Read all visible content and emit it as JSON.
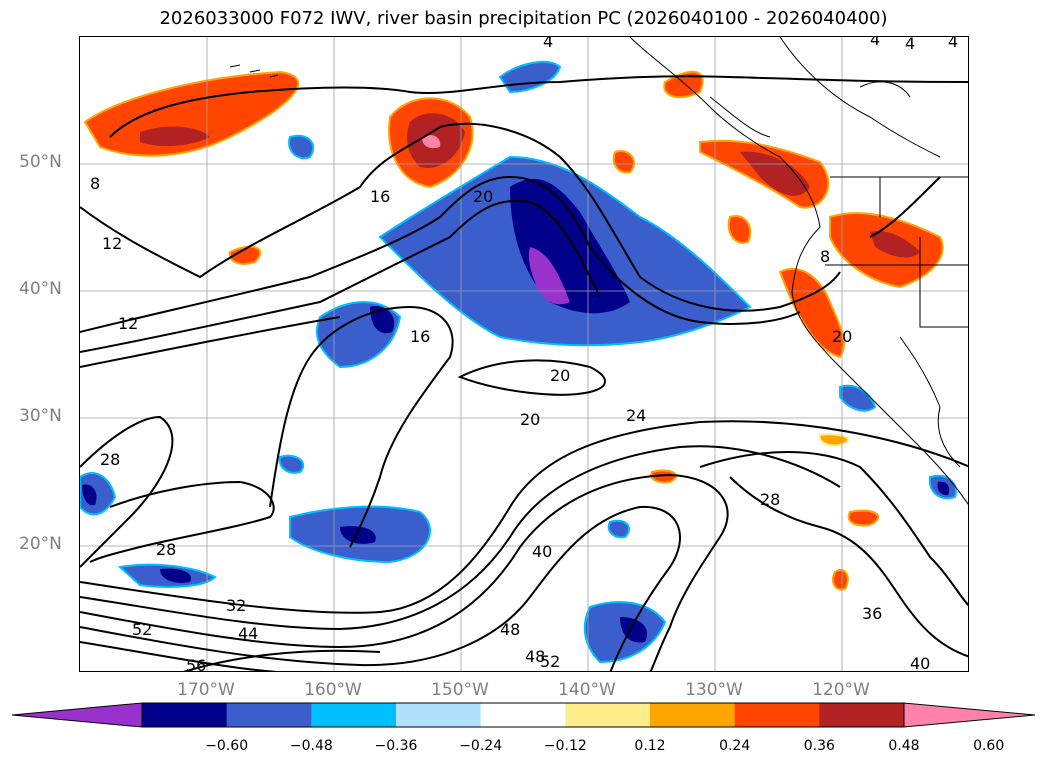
{
  "title": "2026033000 F072 IWV, river basin precipitation PC (2026040100 - 2026040400)",
  "lat_labels": [
    "50°N",
    "40°N",
    "30°N",
    "20°N"
  ],
  "lon_labels": [
    "170°W",
    "160°W",
    "150°W",
    "140°W",
    "130°W",
    "120°W"
  ],
  "contour_labels": [
    "4",
    "4",
    "4",
    "4",
    "8",
    "8",
    "12",
    "12",
    "16",
    "16",
    "20",
    "20",
    "20",
    "20",
    "24",
    "28",
    "28",
    "28",
    "32",
    "36",
    "40",
    "40",
    "44",
    "48",
    "48",
    "52",
    "52",
    "56"
  ],
  "colorbar": {
    "tick_labels": [
      "−0.60",
      "−0.48",
      "−0.36",
      "−0.24",
      "−0.12",
      "0.12",
      "0.24",
      "0.36",
      "0.48",
      "0.60"
    ],
    "colors": [
      "#9932cc",
      "#00008b",
      "#3a5fcd",
      "#00bfff",
      "#b0e2ff",
      "#ffffff",
      "#ffec8b",
      "#ffa500",
      "#ff4500",
      "#b22222",
      "#ff82ab"
    ]
  },
  "colors": {
    "coastline": "#000000",
    "gridline": "#a0a0a0",
    "axis_label": "#808080"
  }
}
